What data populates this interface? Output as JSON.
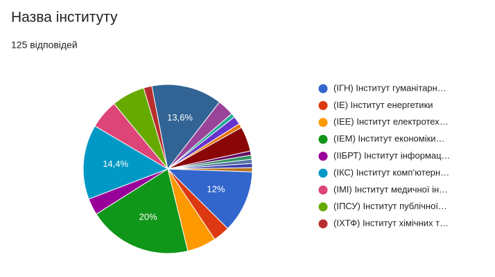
{
  "chart_data": {
    "type": "pie",
    "title": "Назва інституту",
    "subtitle": "125 відповідей",
    "categories": [
      "(ІГН) Інститут гуманітарн…",
      "(ІЕ) Інститут енергетики",
      "(ІЕЕ) Інститут електротех…",
      "(ІЕМ) Інститут економіки…",
      "(ІІБРТ) Інститут інформац…",
      "(ІКС) Інститут комп’ютерн…",
      "(ІМІ) Інститут медичної ін…",
      "(ІПСУ) Інститут публічної…",
      "(ІХТФ) Інститут хімічних т…",
      null,
      null,
      null,
      null,
      null,
      null,
      null,
      null,
      null,
      null,
      null
    ],
    "values": [
      12,
      3.2,
      5.6,
      20,
      3.2,
      14.4,
      5.6,
      6.4,
      1.6,
      13.6,
      3.2,
      0.8,
      1.6,
      0.8,
      4.8,
      0.8,
      0.8,
      0.8,
      0.8,
      0.8
    ],
    "value_labels": [
      "12%",
      null,
      null,
      "20%",
      null,
      "14,4%",
      null,
      null,
      null,
      "13,6%",
      null,
      null,
      null,
      null,
      null,
      null,
      null,
      null,
      null,
      null
    ],
    "colors": [
      "#3366cc",
      "#dc3912",
      "#ff9900",
      "#109618",
      "#990099",
      "#0099c6",
      "#dd4477",
      "#66aa00",
      "#b82e2e",
      "#316395",
      "#994499",
      "#22aa99",
      "#6633cc",
      "#e67300",
      "#8b0707",
      "#651067",
      "#329262",
      "#5574a6",
      "#3b3eac",
      "#b77322"
    ]
  }
}
